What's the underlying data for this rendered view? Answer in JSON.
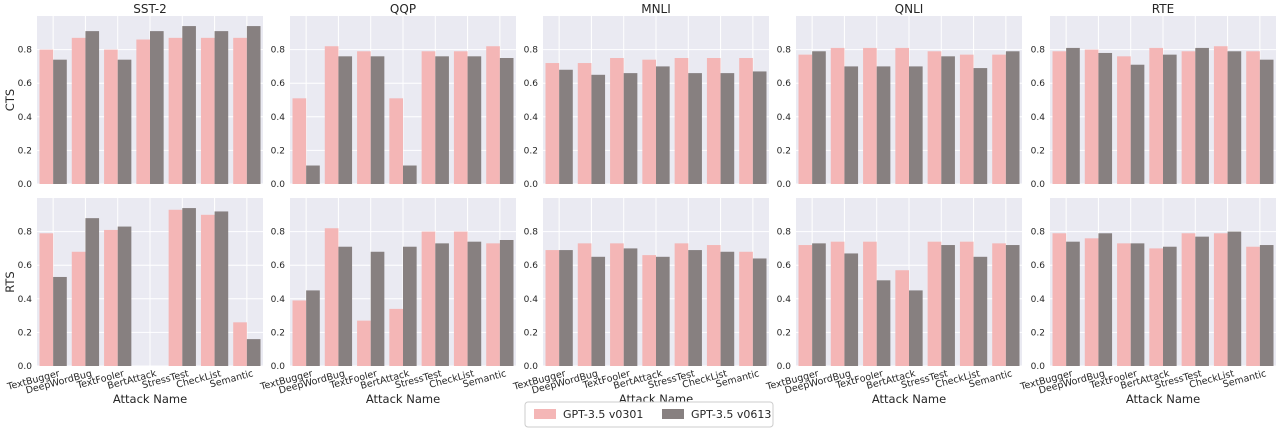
{
  "chart_data": {
    "type": "bar",
    "categories": [
      "TextBugger",
      "DeepWordBug",
      "TextFooler",
      "BertAttack",
      "StressTest",
      "CheckList",
      "Semantic"
    ],
    "datasets": [
      "SST-2",
      "QQP",
      "MNLI",
      "QNLI",
      "RTE"
    ],
    "series_names": [
      "GPT-3.5 v0301",
      "GPT-3.5 v0613"
    ],
    "rows": [
      {
        "ylabel": "CTS",
        "values": [
          [
            [
              0.8,
              0.74
            ],
            [
              0.87,
              0.91
            ],
            [
              0.8,
              0.74
            ],
            [
              0.86,
              0.91
            ],
            [
              0.87,
              0.94
            ],
            [
              0.87,
              0.91
            ],
            [
              0.87,
              0.94
            ]
          ],
          [
            [
              0.51,
              0.11
            ],
            [
              0.82,
              0.76
            ],
            [
              0.79,
              0.76
            ],
            [
              0.51,
              0.11
            ],
            [
              0.79,
              0.76
            ],
            [
              0.79,
              0.76
            ],
            [
              0.82,
              0.75
            ]
          ],
          [
            [
              0.72,
              0.68
            ],
            [
              0.72,
              0.65
            ],
            [
              0.75,
              0.66
            ],
            [
              0.74,
              0.7
            ],
            [
              0.75,
              0.66
            ],
            [
              0.75,
              0.66
            ],
            [
              0.75,
              0.67
            ]
          ],
          [
            [
              0.77,
              0.79
            ],
            [
              0.81,
              0.7
            ],
            [
              0.81,
              0.7
            ],
            [
              0.81,
              0.7
            ],
            [
              0.79,
              0.76
            ],
            [
              0.77,
              0.69
            ],
            [
              0.77,
              0.79
            ]
          ],
          [
            [
              0.79,
              0.81
            ],
            [
              0.8,
              0.78
            ],
            [
              0.76,
              0.71
            ],
            [
              0.81,
              0.77
            ],
            [
              0.79,
              0.81
            ],
            [
              0.82,
              0.79
            ],
            [
              0.79,
              0.74
            ]
          ]
        ]
      },
      {
        "ylabel": "RTS",
        "values": [
          [
            [
              0.79,
              0.53
            ],
            [
              0.68,
              0.88
            ],
            [
              0.81,
              0.83
            ],
            [
              0.0,
              0.0
            ],
            [
              0.93,
              0.94
            ],
            [
              0.9,
              0.92
            ],
            [
              0.26,
              0.16
            ]
          ],
          [
            [
              0.39,
              0.45
            ],
            [
              0.82,
              0.71
            ],
            [
              0.27,
              0.68
            ],
            [
              0.34,
              0.71
            ],
            [
              0.8,
              0.73
            ],
            [
              0.8,
              0.74
            ],
            [
              0.73,
              0.75
            ]
          ],
          [
            [
              0.69,
              0.69
            ],
            [
              0.73,
              0.65
            ],
            [
              0.73,
              0.7
            ],
            [
              0.66,
              0.65
            ],
            [
              0.73,
              0.69
            ],
            [
              0.72,
              0.68
            ],
            [
              0.68,
              0.64
            ]
          ],
          [
            [
              0.72,
              0.73
            ],
            [
              0.74,
              0.67
            ],
            [
              0.74,
              0.51
            ],
            [
              0.57,
              0.45
            ],
            [
              0.74,
              0.72
            ],
            [
              0.74,
              0.65
            ],
            [
              0.73,
              0.72
            ]
          ],
          [
            [
              0.79,
              0.74
            ],
            [
              0.76,
              0.79
            ],
            [
              0.73,
              0.73
            ],
            [
              0.7,
              0.71
            ],
            [
              0.79,
              0.77
            ],
            [
              0.79,
              0.8
            ],
            [
              0.71,
              0.72
            ]
          ]
        ]
      }
    ],
    "ylim": [
      0,
      1.0
    ],
    "yticks": [
      "0.0",
      "0.2",
      "0.4",
      "0.6",
      "0.8"
    ],
    "xlabel": "Attack Name",
    "colors": {
      "GPT-3.5 v0301": "#f4b6b6",
      "GPT-3.5 v0613": "#878080",
      "panel_background": "#eaeaf2",
      "grid": "#ffffff"
    },
    "grid": true,
    "legend_position": "bottom-center"
  }
}
